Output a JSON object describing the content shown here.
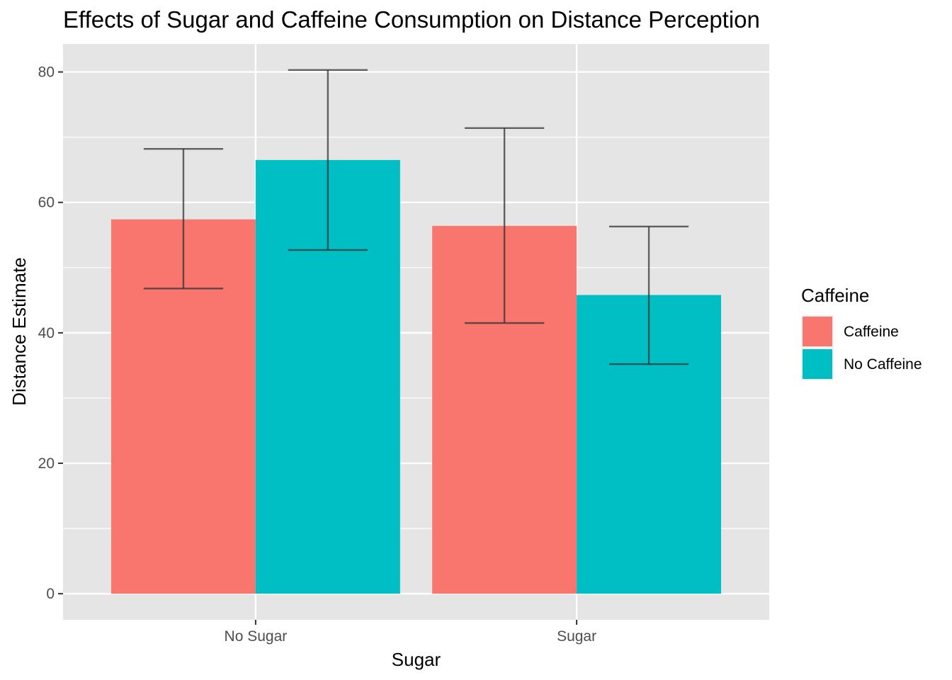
{
  "chart_data": {
    "type": "bar",
    "title": "Effects of Sugar and Caffeine Consumption on Distance Perception",
    "xlabel": "Sugar",
    "ylabel": "Distance Estimate",
    "categories": [
      "No Sugar",
      "Sugar"
    ],
    "ylim": [
      -4,
      84.3
    ],
    "yticks": [
      0,
      20,
      40,
      60,
      80
    ],
    "legend": {
      "title": "Caffeine",
      "placement": "right"
    },
    "series": [
      {
        "name": "Caffeine",
        "color": "#F8766D",
        "values": [
          57.4,
          56.4
        ],
        "error_low": [
          46.8,
          41.5
        ],
        "error_high": [
          68.2,
          71.4
        ]
      },
      {
        "name": "No Caffeine",
        "color": "#00BFC4",
        "values": [
          66.5,
          45.8
        ],
        "error_low": [
          52.7,
          35.2
        ],
        "error_high": [
          80.3,
          56.3
        ]
      }
    ],
    "grid": true,
    "panel_background": "#E5E5E5",
    "grid_color": "#FFFFFF",
    "error_bar_color": "#333333"
  }
}
